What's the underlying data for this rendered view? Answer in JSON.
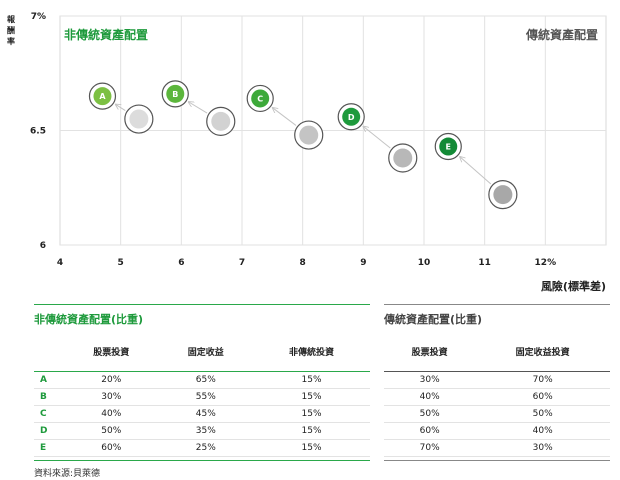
{
  "chart_data": {
    "type": "scatter",
    "ylabel": "報酬率",
    "xlabel": "風險(標準差)",
    "xlim": [
      4,
      13
    ],
    "ylim": [
      6,
      7
    ],
    "x_ticks": [
      "4",
      "5",
      "6",
      "7",
      "8",
      "9",
      "10",
      "11",
      "12%"
    ],
    "x_tick_values": [
      4,
      5,
      6,
      7,
      8,
      9,
      10,
      11,
      12
    ],
    "y_ticks": [
      "6",
      "6.5",
      "7%"
    ],
    "y_tick_values": [
      6,
      6.5,
      7
    ],
    "grid": true,
    "annotations": {
      "left": "非傳統資產配置",
      "right": "傳統資產配置"
    },
    "series": [
      {
        "name": "非傳統資產配置",
        "color": "#1e9a3c",
        "points": [
          {
            "label": "A",
            "x": 4.7,
            "y": 6.65,
            "color": "#7cc043"
          },
          {
            "label": "B",
            "x": 5.9,
            "y": 6.66,
            "color": "#5cb63c"
          },
          {
            "label": "C",
            "x": 7.3,
            "y": 6.64,
            "color": "#3da93a"
          },
          {
            "label": "D",
            "x": 8.8,
            "y": 6.56,
            "color": "#1e9a3c"
          },
          {
            "label": "E",
            "x": 10.4,
            "y": 6.43,
            "color": "#138a36"
          }
        ]
      },
      {
        "name": "傳統資產配置",
        "color": "#999999",
        "points": [
          {
            "x": 5.3,
            "y": 6.55,
            "color": "#dcdcdc"
          },
          {
            "x": 6.65,
            "y": 6.54,
            "color": "#d2d2d2"
          },
          {
            "x": 8.1,
            "y": 6.48,
            "color": "#c4c4c4"
          },
          {
            "x": 9.65,
            "y": 6.38,
            "color": "#b8b8b8"
          },
          {
            "x": 11.3,
            "y": 6.22,
            "color": "#a8a8a8"
          }
        ]
      }
    ]
  },
  "nontraditional_table": {
    "title": "非傳統資產配置(比重)",
    "headers": [
      "",
      "股票投資",
      "固定收益",
      "非傳統投資"
    ],
    "rows": [
      [
        "A",
        "20%",
        "65%",
        "15%"
      ],
      [
        "B",
        "30%",
        "55%",
        "15%"
      ],
      [
        "C",
        "40%",
        "45%",
        "15%"
      ],
      [
        "D",
        "50%",
        "35%",
        "15%"
      ],
      [
        "E",
        "60%",
        "25%",
        "15%"
      ]
    ]
  },
  "traditional_table": {
    "title": "傳統資產配置(比重)",
    "headers": [
      "股票投資",
      "固定收益投資"
    ],
    "rows": [
      [
        "30%",
        "70%"
      ],
      [
        "40%",
        "60%"
      ],
      [
        "50%",
        "50%"
      ],
      [
        "60%",
        "40%"
      ],
      [
        "70%",
        "30%"
      ]
    ]
  },
  "source": "資料來源:貝萊德"
}
